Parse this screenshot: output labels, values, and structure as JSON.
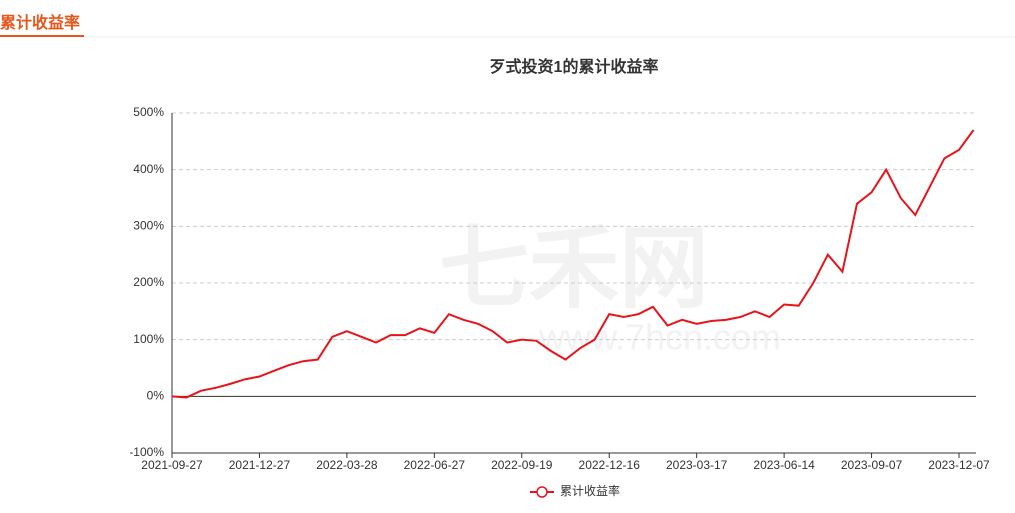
{
  "header": {
    "title": "累计收益率"
  },
  "watermark": {
    "text": "七禾网",
    "url": "www.7hcn.com"
  },
  "chart_data": {
    "type": "line",
    "title": "歹式投资1的累计收益率",
    "categories": [
      "2021-09-27",
      null,
      null,
      null,
      null,
      null,
      "2021-12-27",
      null,
      null,
      null,
      null,
      null,
      "2022-03-28",
      null,
      null,
      null,
      null,
      null,
      "2022-06-27",
      null,
      null,
      null,
      null,
      null,
      "2022-09-19",
      null,
      null,
      null,
      null,
      null,
      "2022-12-16",
      null,
      null,
      null,
      null,
      null,
      "2023-03-17",
      null,
      null,
      null,
      null,
      null,
      "2023-06-14",
      null,
      null,
      null,
      null,
      null,
      "2023-09-07",
      null,
      null,
      null,
      null,
      null,
      "2023-12-07",
      null
    ],
    "series": [
      {
        "name": "累计收益率",
        "color": "#e8141b",
        "values": [
          0,
          -2,
          10,
          15,
          22,
          30,
          35,
          45,
          55,
          62,
          65,
          105,
          115,
          105,
          95,
          108,
          108,
          120,
          112,
          145,
          135,
          128,
          115,
          95,
          100,
          98,
          80,
          65,
          85,
          100,
          145,
          140,
          145,
          158,
          125,
          135,
          128,
          133,
          135,
          140,
          150,
          140,
          162,
          160,
          200,
          250,
          220,
          340,
          360,
          400,
          350,
          320,
          370,
          420,
          435,
          470
        ]
      }
    ],
    "ylim": [
      -100,
      500
    ],
    "yticks": [
      {
        "value": -100,
        "label": "-100%"
      },
      {
        "value": 0,
        "label": "0%"
      },
      {
        "value": 100,
        "label": "100%"
      },
      {
        "value": 200,
        "label": "200%"
      },
      {
        "value": 300,
        "label": "300%"
      },
      {
        "value": 400,
        "label": "400%"
      },
      {
        "value": 500,
        "label": "500%"
      }
    ],
    "grid": true
  }
}
